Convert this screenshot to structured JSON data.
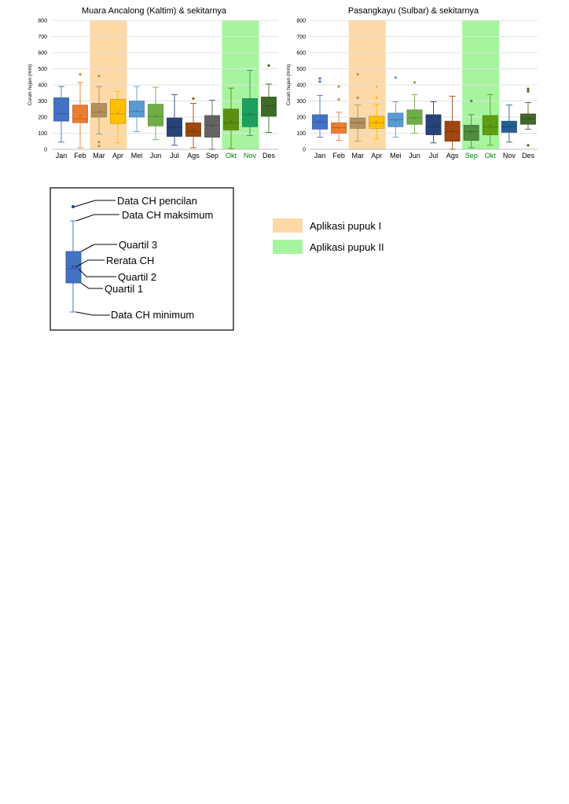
{
  "chart_data": [
    {
      "type": "boxplot",
      "title": "Muara Ancalong (Kaltim) & sekitarnya",
      "ylabel": "Curah hujan (mm)",
      "ylim": [
        0,
        800
      ],
      "yticks": [
        "0",
        "100",
        "200",
        "300",
        "400",
        "500",
        "600",
        "700",
        "800"
      ],
      "highlights": [
        {
          "label": "Aplikasi pupuk I",
          "from": "Mar",
          "to": "Apr",
          "color": "#fdd9a5"
        },
        {
          "label": "Aplikasi pupuk II",
          "from": "Okt",
          "to": "Nov",
          "color": "#a6f59e"
        }
      ],
      "months": [
        {
          "label": "Jan",
          "color": "#4472c4",
          "min": 45,
          "q1": 175,
          "median": 220,
          "mean": 230,
          "q3": 320,
          "max": 390,
          "outliers": [],
          "green_label": false
        },
        {
          "label": "Feb",
          "color": "#ed7d31",
          "min": 10,
          "q1": 165,
          "median": 190,
          "mean": 210,
          "q3": 275,
          "max": 415,
          "outliers": [
            465
          ],
          "green_label": false
        },
        {
          "label": "Mar",
          "color": "#b58f5e",
          "min": 95,
          "q1": 200,
          "median": 230,
          "mean": 235,
          "q3": 285,
          "max": 390,
          "outliers": [
            455,
            45,
            20
          ],
          "green_label": false
        },
        {
          "label": "Apr",
          "color": "#ffc000",
          "min": 40,
          "q1": 160,
          "median": 220,
          "mean": 230,
          "q3": 310,
          "max": 360,
          "outliers": [],
          "green_label": false
        },
        {
          "label": "Mei",
          "color": "#5b9bd5",
          "min": 110,
          "q1": 200,
          "median": 235,
          "mean": 240,
          "q3": 300,
          "max": 390,
          "outliers": [],
          "green_label": false
        },
        {
          "label": "Jun",
          "color": "#70ad47",
          "min": 60,
          "q1": 145,
          "median": 205,
          "mean": 205,
          "q3": 280,
          "max": 385,
          "outliers": [],
          "green_label": false
        },
        {
          "label": "Jul",
          "color": "#264478",
          "min": 25,
          "q1": 80,
          "median": 135,
          "mean": 140,
          "q3": 195,
          "max": 340,
          "outliers": [],
          "green_label": false
        },
        {
          "label": "Ags",
          "color": "#9e480e",
          "min": 10,
          "q1": 80,
          "median": 110,
          "mean": 125,
          "q3": 165,
          "max": 285,
          "outliers": [
            315
          ],
          "green_label": false
        },
        {
          "label": "Sep",
          "color": "#636363",
          "min": 0,
          "q1": 75,
          "median": 150,
          "mean": 145,
          "q3": 210,
          "max": 305,
          "outliers": [],
          "green_label": false
        },
        {
          "label": "Okt",
          "color": "#5e8f11",
          "min": 5,
          "q1": 120,
          "median": 165,
          "mean": 175,
          "q3": 250,
          "max": 380,
          "outliers": [],
          "green_label": true
        },
        {
          "label": "Nov",
          "color": "#1f9f5f",
          "min": 85,
          "q1": 140,
          "median": 215,
          "mean": 225,
          "q3": 315,
          "max": 490,
          "outliers": [],
          "green_label": true
        },
        {
          "label": "Des",
          "color": "#3e6b28",
          "min": 105,
          "q1": 205,
          "median": 270,
          "mean": 260,
          "q3": 325,
          "max": 405,
          "outliers": [
            520
          ],
          "green_label": false
        }
      ]
    },
    {
      "type": "boxplot",
      "title": "Pasangkayu (Sulbar) & sekitarnya",
      "ylabel": "Curah hujan (mm)",
      "ylim": [
        0,
        800
      ],
      "yticks": [
        "0",
        "100",
        "200",
        "300",
        "400",
        "500",
        "600",
        "700",
        "800"
      ],
      "highlights": [
        {
          "label": "Aplikasi pupuk I",
          "from": "Mar",
          "to": "Apr",
          "color": "#fdd9a5"
        },
        {
          "label": "Aplikasi pupuk II",
          "from": "Sep",
          "to": "Okt",
          "color": "#a6f59e"
        }
      ],
      "months": [
        {
          "label": "Jan",
          "color": "#4472c4",
          "min": 75,
          "q1": 125,
          "median": 170,
          "mean": 170,
          "q3": 215,
          "max": 335,
          "outliers": [
            440,
            420
          ],
          "green_label": false
        },
        {
          "label": "Feb",
          "color": "#ed7d31",
          "min": 55,
          "q1": 100,
          "median": 135,
          "mean": 135,
          "q3": 165,
          "max": 230,
          "outliers": [
            390,
            310
          ],
          "green_label": false
        },
        {
          "label": "Mar",
          "color": "#b58f5e",
          "min": 50,
          "q1": 130,
          "median": 165,
          "mean": 165,
          "q3": 195,
          "max": 275,
          "outliers": [
            465,
            320
          ],
          "green_label": false
        },
        {
          "label": "Apr",
          "color": "#ffc000",
          "min": 65,
          "q1": 130,
          "median": 165,
          "mean": 170,
          "q3": 205,
          "max": 280,
          "outliers": [
            390,
            320
          ],
          "green_label": false
        },
        {
          "label": "Mei",
          "color": "#5b9bd5",
          "min": 75,
          "q1": 140,
          "median": 185,
          "mean": 180,
          "q3": 225,
          "max": 295,
          "outliers": [
            445
          ],
          "green_label": false
        },
        {
          "label": "Jun",
          "color": "#70ad47",
          "min": 100,
          "q1": 155,
          "median": 195,
          "mean": 195,
          "q3": 245,
          "max": 340,
          "outliers": [
            415
          ],
          "green_label": false
        },
        {
          "label": "Jul",
          "color": "#264478",
          "min": 40,
          "q1": 90,
          "median": 140,
          "mean": 150,
          "q3": 215,
          "max": 295,
          "outliers": [],
          "green_label": false
        },
        {
          "label": "Ags",
          "color": "#9e480e",
          "min": 0,
          "q1": 50,
          "median": 110,
          "mean": 115,
          "q3": 175,
          "max": 330,
          "outliers": [],
          "green_label": false
        },
        {
          "label": "Sep",
          "color": "#4f8c3f",
          "min": 10,
          "q1": 55,
          "median": 110,
          "mean": 110,
          "q3": 150,
          "max": 215,
          "outliers": [
            300
          ],
          "green_label": true
        },
        {
          "label": "Okt",
          "color": "#5e9e10",
          "min": 25,
          "q1": 90,
          "median": 140,
          "mean": 150,
          "q3": 210,
          "max": 340,
          "outliers": [],
          "green_label": true
        },
        {
          "label": "Nov",
          "color": "#255e91",
          "min": 45,
          "q1": 105,
          "median": 140,
          "mean": 140,
          "q3": 175,
          "max": 275,
          "outliers": [],
          "green_label": false
        },
        {
          "label": "Des",
          "color": "#43682b",
          "min": 125,
          "q1": 155,
          "median": 190,
          "mean": 190,
          "q3": 220,
          "max": 290,
          "outliers": [
            375,
            360,
            25
          ],
          "green_label": false
        }
      ]
    }
  ],
  "boxplot_key": {
    "outlier": "Data CH pencilan",
    "maximum": "Data CH maksimum",
    "q3": "Quartil 3",
    "mean": "Rerata CH",
    "q2": "Quartil 2",
    "q1": "Quartil 1",
    "minimum": "Data CH minimum",
    "box_color": "#4472c4"
  },
  "legend": {
    "fert1": {
      "label": "Aplikasi pupuk I",
      "color": "#fdd9a5"
    },
    "fert2": {
      "label": "Aplikasi pupuk II",
      "color": "#a6f59e"
    }
  }
}
